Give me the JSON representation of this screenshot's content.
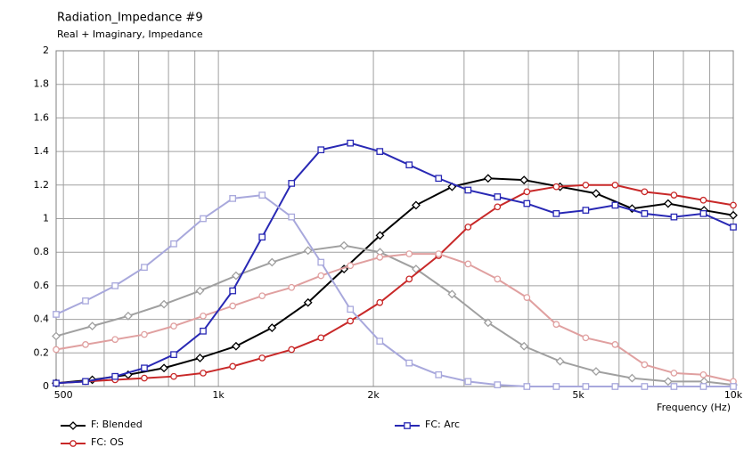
{
  "chart_data": {
    "type": "line",
    "title": "Radiation_Impedance #9",
    "subtitle": "Real + Imaginary, Impedance",
    "x_label": "Frequency  (Hz)",
    "xscale": "log",
    "xlim": [
      484,
      10000
    ],
    "xticks": [
      500,
      {
        "value": 1000,
        "label": "1k"
      },
      {
        "value": 2000,
        "label": "2k"
      },
      {
        "value": 5000,
        "label": "5k"
      },
      {
        "value": 10000,
        "label": "10k"
      }
    ],
    "xminor": [
      600,
      700,
      800,
      900,
      3000,
      4000,
      6000,
      7000,
      8000,
      9000
    ],
    "ylim": [
      0,
      2
    ],
    "yticks": [
      0,
      0.2,
      0.4,
      0.6,
      0.8,
      1,
      1.2,
      1.4,
      1.6,
      1.8,
      2
    ],
    "grid": true,
    "series": [
      {
        "name": "F: Blended",
        "color": "#000000",
        "marker": "diamond",
        "x": [
          484,
          569,
          668,
          784,
          921,
          1082,
          1271,
          1493,
          1754,
          2060,
          2420,
          2843,
          3340,
          3923,
          4609,
          5414,
          6360,
          7471,
          8776,
          10000
        ],
        "values": [
          0.02,
          0.04,
          0.07,
          0.11,
          0.17,
          0.24,
          0.35,
          0.5,
          0.7,
          0.9,
          1.08,
          1.19,
          1.24,
          1.23,
          1.19,
          1.15,
          1.06,
          1.09,
          1.05,
          1.02
        ]
      },
      {
        "color": "#a0a0a0",
        "marker": "diamond",
        "x": [
          484,
          569,
          668,
          784,
          921,
          1082,
          1271,
          1493,
          1754,
          2060,
          2420,
          2843,
          3340,
          3923,
          4609,
          5414,
          6360,
          7471,
          8776,
          10000
        ],
        "values": [
          0.3,
          0.36,
          0.42,
          0.49,
          0.57,
          0.66,
          0.74,
          0.81,
          0.84,
          0.8,
          0.7,
          0.55,
          0.38,
          0.24,
          0.15,
          0.09,
          0.05,
          0.03,
          0.03,
          0.01
        ]
      },
      {
        "name": "FC: OS",
        "color": "#c82828",
        "marker": "circle",
        "x": [
          484,
          552,
          630,
          718,
          819,
          934,
          1066,
          1216,
          1387,
          1582,
          1804,
          2058,
          2347,
          2677,
          3054,
          3483,
          3973,
          4531,
          5169,
          5895,
          6724,
          7670,
          8748,
          10000
        ],
        "values": [
          0.02,
          0.03,
          0.04,
          0.05,
          0.06,
          0.08,
          0.12,
          0.17,
          0.22,
          0.29,
          0.39,
          0.5,
          0.64,
          0.78,
          0.95,
          1.07,
          1.16,
          1.19,
          1.2,
          1.2,
          1.16,
          1.14,
          1.11,
          1.08
        ]
      },
      {
        "color": "#e0a0a0",
        "marker": "circle",
        "x": [
          484,
          552,
          630,
          718,
          819,
          934,
          1066,
          1216,
          1387,
          1582,
          1804,
          2058,
          2347,
          2677,
          3054,
          3483,
          3973,
          4531,
          5169,
          5895,
          6724,
          7670,
          8748,
          10000
        ],
        "values": [
          0.22,
          0.25,
          0.28,
          0.31,
          0.36,
          0.42,
          0.48,
          0.54,
          0.59,
          0.66,
          0.72,
          0.77,
          0.79,
          0.79,
          0.73,
          0.64,
          0.53,
          0.37,
          0.29,
          0.25,
          0.13,
          0.08,
          0.07,
          0.03
        ]
      },
      {
        "name": "FC: Arc",
        "color": "#2828b4",
        "marker": "square",
        "x": [
          484,
          552,
          630,
          718,
          819,
          934,
          1066,
          1216,
          1387,
          1582,
          1804,
          2058,
          2347,
          2677,
          3054,
          3483,
          3973,
          4531,
          5169,
          5895,
          6724,
          7670,
          8748,
          10000
        ],
        "values": [
          0.02,
          0.03,
          0.06,
          0.11,
          0.19,
          0.33,
          0.57,
          0.89,
          1.21,
          1.41,
          1.45,
          1.4,
          1.32,
          1.24,
          1.17,
          1.13,
          1.09,
          1.03,
          1.05,
          1.08,
          1.03,
          1.01,
          1.03,
          0.95
        ]
      },
      {
        "color": "#a8a8dc",
        "marker": "square",
        "x": [
          484,
          552,
          630,
          718,
          819,
          934,
          1066,
          1216,
          1387,
          1582,
          1804,
          2058,
          2347,
          2677,
          3054,
          3483,
          3973,
          4531,
          5169,
          5895,
          6724,
          7670,
          8748,
          10000
        ],
        "values": [
          0.43,
          0.51,
          0.6,
          0.71,
          0.85,
          1.0,
          1.12,
          1.14,
          1.01,
          0.74,
          0.46,
          0.27,
          0.14,
          0.07,
          0.03,
          0.01,
          0,
          0,
          0,
          0,
          0,
          0,
          0,
          0
        ]
      }
    ]
  }
}
